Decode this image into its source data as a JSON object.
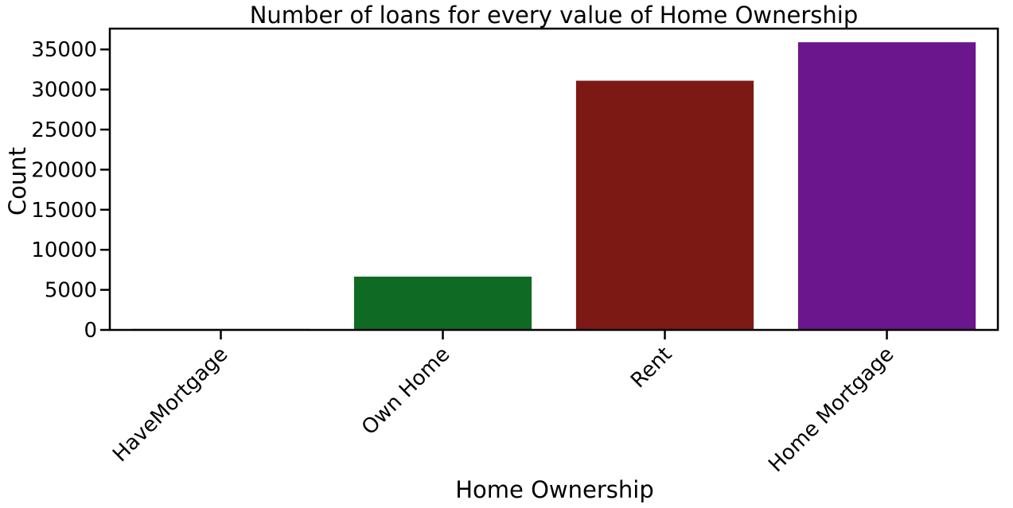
{
  "chart_data": {
    "type": "bar",
    "title": "Number of loans for every value of Home Ownership",
    "xlabel": "Home Ownership",
    "ylabel": "Count",
    "categories": [
      "HaveMortgage",
      "Own Home",
      "Rent",
      "Home Mortgage"
    ],
    "values": [
      120,
      6650,
      31100,
      35900
    ],
    "colors": [
      "#1f4fa0",
      "#0f6b23",
      "#7d1915",
      "#6b168c"
    ],
    "ylim": [
      0,
      37600
    ],
    "yticks": [
      0,
      5000,
      10000,
      15000,
      20000,
      25000,
      30000,
      35000
    ],
    "grid": false,
    "legend": "none"
  }
}
